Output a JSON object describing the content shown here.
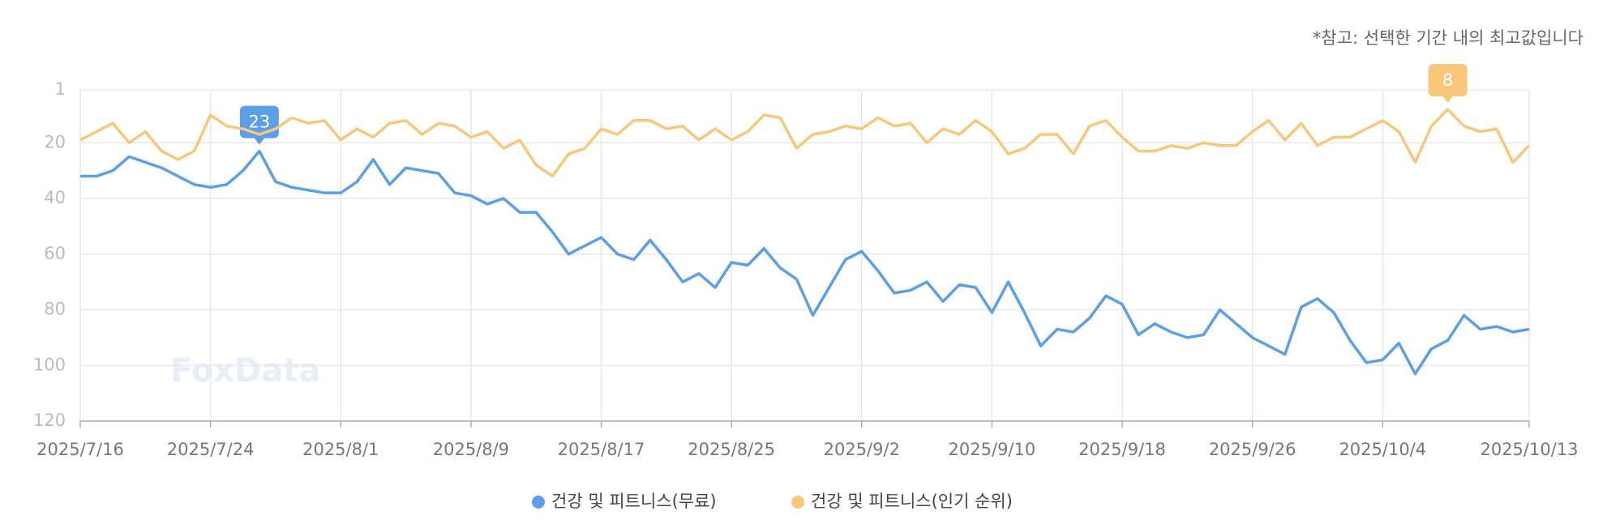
{
  "chart_data": {
    "type": "line",
    "note": "*참고: 선택한 기간 내의 최고값입니다",
    "watermark": "FoxData",
    "categories": [
      "2025/7/16",
      null,
      null,
      null,
      null,
      null,
      null,
      null,
      "2025/7/24",
      null,
      null,
      null,
      null,
      null,
      null,
      null,
      "2025/8/1",
      null,
      null,
      null,
      null,
      null,
      null,
      null,
      "2025/8/9",
      null,
      null,
      null,
      null,
      null,
      null,
      null,
      "2025/8/17",
      null,
      null,
      null,
      null,
      null,
      null,
      null,
      "2025/8/25",
      null,
      null,
      null,
      null,
      null,
      null,
      null,
      "2025/9/2",
      null,
      null,
      null,
      null,
      null,
      null,
      null,
      "2025/9/10",
      null,
      null,
      null,
      null,
      null,
      null,
      null,
      "2025/9/18",
      null,
      null,
      null,
      null,
      null,
      null,
      null,
      "2025/9/26",
      null,
      null,
      null,
      null,
      null,
      null,
      null,
      "2025/10/4",
      null,
      null,
      null,
      null,
      null,
      null,
      null,
      null,
      "2025/10/13"
    ],
    "ylim": [
      1,
      120
    ],
    "yticks": [
      1,
      20,
      40,
      60,
      80,
      100,
      120
    ],
    "inverted": true,
    "grid": true,
    "legend": "bottom",
    "series": [
      {
        "name": "건강 및 피트니스(무료)",
        "color": "#5b9fe8",
        "peak_label": "23",
        "values": [
          32,
          32,
          30,
          25,
          27,
          29,
          32,
          35,
          36,
          35,
          30,
          23,
          34,
          36,
          37,
          38,
          38,
          34,
          26,
          35,
          29,
          30,
          31,
          38,
          39,
          42,
          40,
          45,
          45,
          52,
          60,
          57,
          54,
          60,
          62,
          55,
          62,
          70,
          67,
          72,
          63,
          64,
          58,
          65,
          69,
          82,
          72,
          62,
          59,
          66,
          74,
          73,
          70,
          77,
          71,
          72,
          81,
          70,
          81,
          93,
          87,
          88,
          83,
          75,
          78,
          89,
          85,
          88,
          90,
          89,
          80,
          85,
          90,
          93,
          96,
          79,
          76,
          81,
          91,
          99,
          98,
          92,
          103,
          94,
          91,
          82,
          87,
          86,
          88,
          87
        ]
      },
      {
        "name": "건강 및 피트니스(인기 순위)",
        "color": "#f8c77a",
        "peak_label": "8",
        "values": [
          19,
          16,
          13,
          20,
          16,
          23,
          26,
          23,
          10,
          14,
          15,
          17,
          15,
          11,
          13,
          12,
          19,
          15,
          18,
          13,
          12,
          17,
          13,
          14,
          18,
          16,
          22,
          19,
          28,
          32,
          24,
          22,
          15,
          17,
          12,
          12,
          15,
          14,
          19,
          15,
          19,
          16,
          10,
          11,
          22,
          17,
          16,
          14,
          15,
          11,
          14,
          13,
          20,
          15,
          17,
          12,
          16,
          24,
          22,
          17,
          17,
          24,
          14,
          12,
          18,
          23,
          23,
          21,
          22,
          20,
          21,
          21,
          16,
          12,
          19,
          13,
          21,
          18,
          18,
          15,
          12,
          16,
          27,
          14,
          8,
          14,
          16,
          15,
          27,
          21
        ]
      }
    ]
  }
}
